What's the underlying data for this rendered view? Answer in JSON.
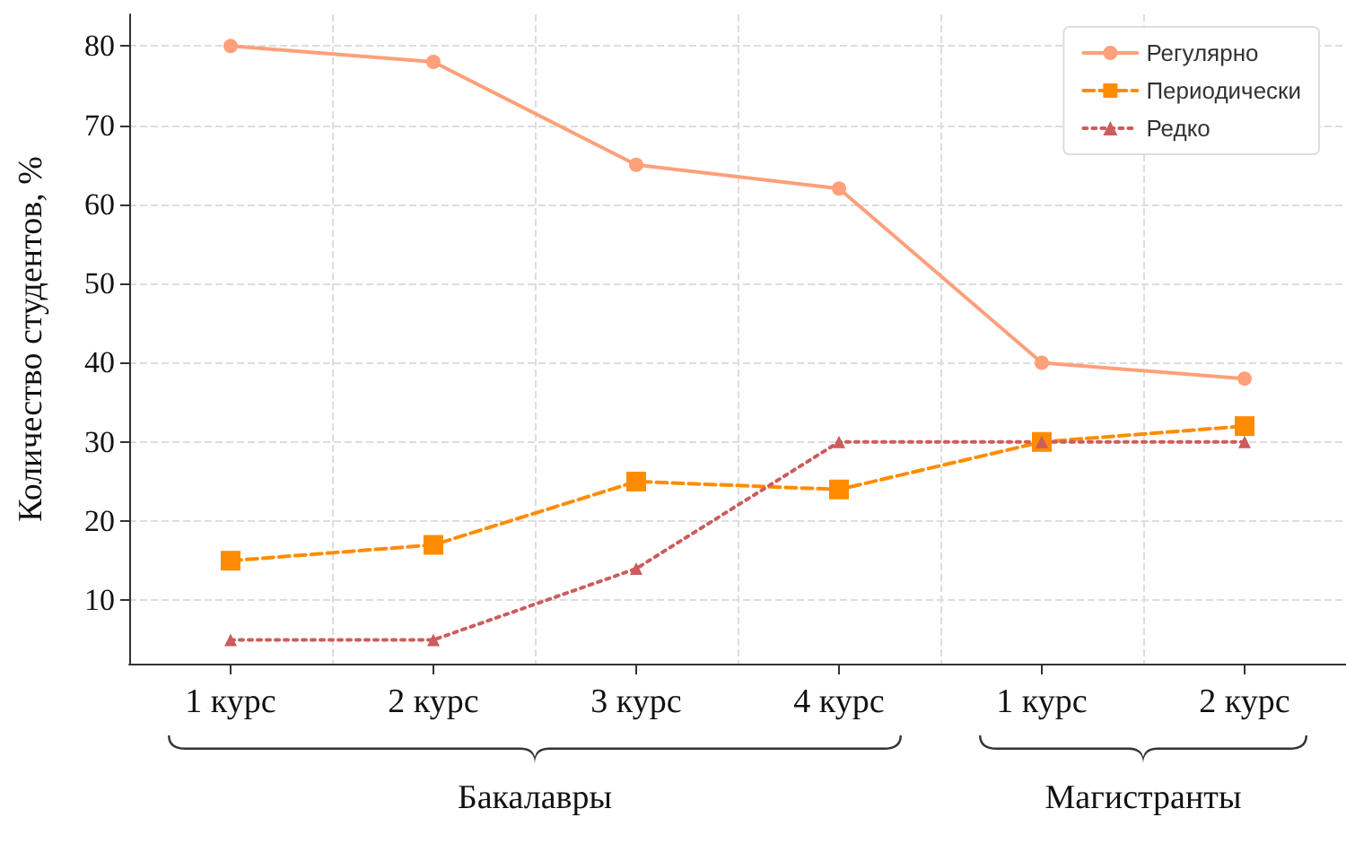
{
  "chart_data": {
    "type": "line",
    "ylabel": "Количество студентов, %",
    "categories": [
      "1 курс",
      "2 курс",
      "3 курс",
      "4 курс",
      "1 курс",
      "2 курс"
    ],
    "series": [
      {
        "name": "Регулярно",
        "color": "#ffa07a",
        "marker": "circle",
        "line_style": "solid",
        "values": [
          80,
          78,
          65,
          62,
          40,
          38
        ]
      },
      {
        "name": "Периодически",
        "color": "#ff8c00",
        "marker": "square",
        "line_style": "dashed",
        "values": [
          15,
          17,
          25,
          24,
          30,
          32
        ]
      },
      {
        "name": "Редко",
        "color": "#cd5c5c",
        "marker": "triangle",
        "line_style": "dotted",
        "values": [
          5,
          5,
          14,
          30,
          30,
          30
        ]
      }
    ],
    "ylim": [
      2,
      84
    ],
    "yticks": [
      10,
      20,
      30,
      40,
      50,
      60,
      70,
      80
    ],
    "grid": true,
    "legend": "top right",
    "annotations": [
      "Бакалавры",
      "Магистранты"
    ]
  }
}
